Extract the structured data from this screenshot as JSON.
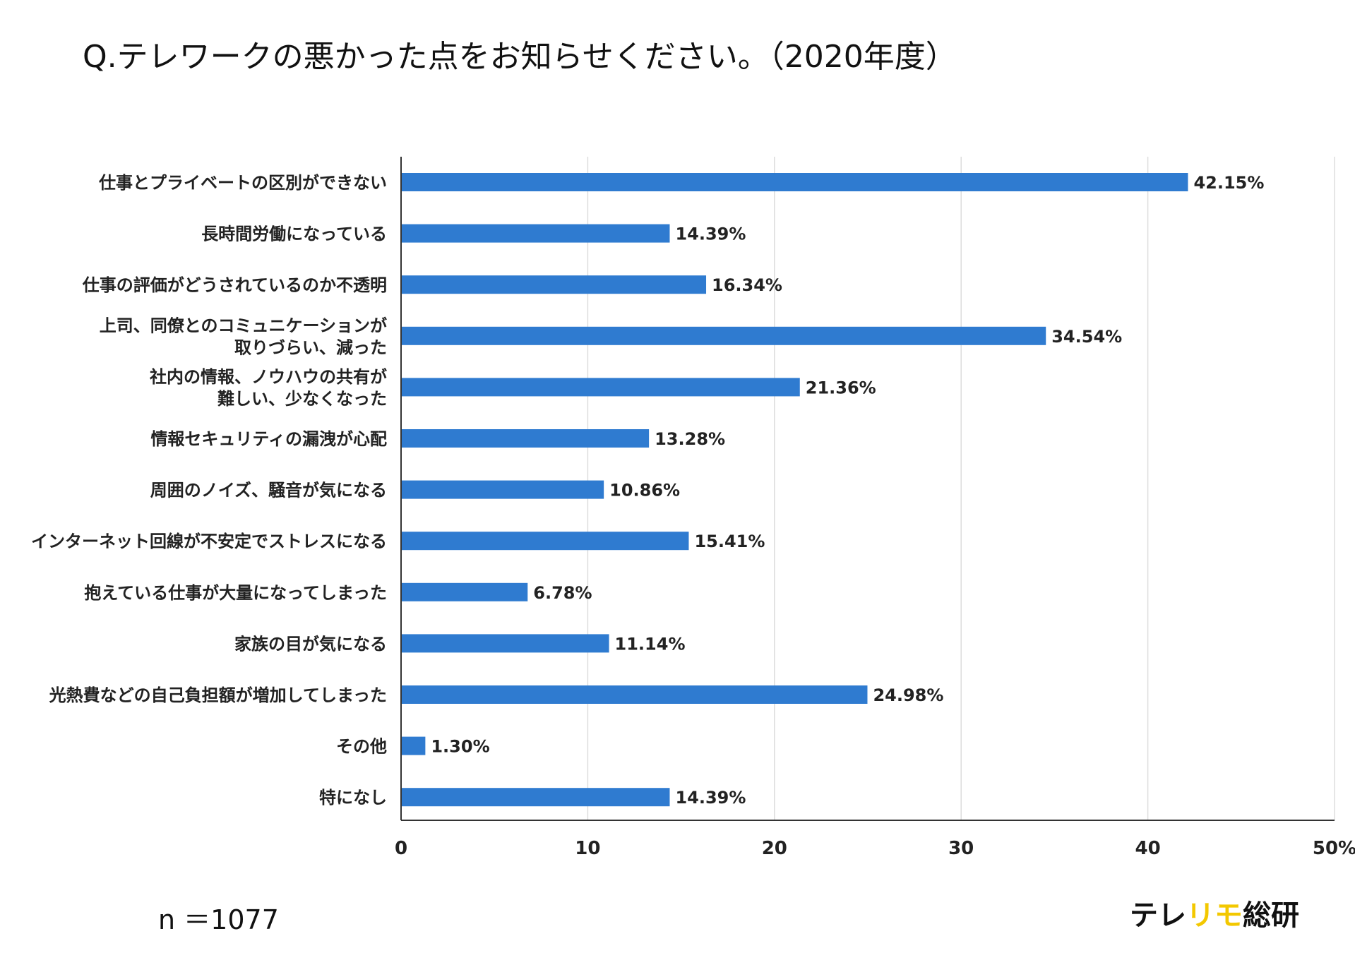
{
  "title": "Q.テレワークの悪かった点をお知らせください。（2020年度）",
  "footnote": "n ＝1077",
  "logo": {
    "part1": "テレ",
    "part2": "リモ",
    "part3": "総研",
    "accent_color": "#f3c800"
  },
  "chart_data": {
    "type": "bar",
    "orientation": "horizontal",
    "bar_color": "#2f7bd0",
    "categories": [
      [
        "仕事とプライベートの区別ができない"
      ],
      [
        "長時間労働になっている"
      ],
      [
        "仕事の評価がどうされているのか不透明"
      ],
      [
        "上司、同僚とのコミュニケーションが",
        "取りづらい、減った"
      ],
      [
        "社内の情報、ノウハウの共有が",
        "難しい、少なくなった"
      ],
      [
        "情報セキュリティの漏洩が心配"
      ],
      [
        "周囲のノイズ、騒音が気になる"
      ],
      [
        "インターネット回線が不安定でストレスになる"
      ],
      [
        "抱えている仕事が大量になってしまった"
      ],
      [
        "家族の目が気になる"
      ],
      [
        "光熱費などの自己負担額が増加してしまった"
      ],
      [
        "その他"
      ],
      [
        "特になし"
      ]
    ],
    "values": [
      42.15,
      14.39,
      16.34,
      34.54,
      21.36,
      13.28,
      10.86,
      15.41,
      6.78,
      11.14,
      24.98,
      1.3,
      14.39
    ],
    "value_labels": [
      "42.15%",
      "14.39%",
      "16.34%",
      "34.54%",
      "21.36%",
      "13.28%",
      "10.86%",
      "15.41%",
      "6.78%",
      "11.14%",
      "24.98%",
      "1.30%",
      "14.39%"
    ],
    "xlim": [
      0,
      50
    ],
    "xticks": [
      0,
      10,
      20,
      30,
      40,
      50
    ],
    "xtick_labels": [
      "0",
      "10",
      "20",
      "30",
      "40",
      "50%"
    ],
    "grid": true
  }
}
